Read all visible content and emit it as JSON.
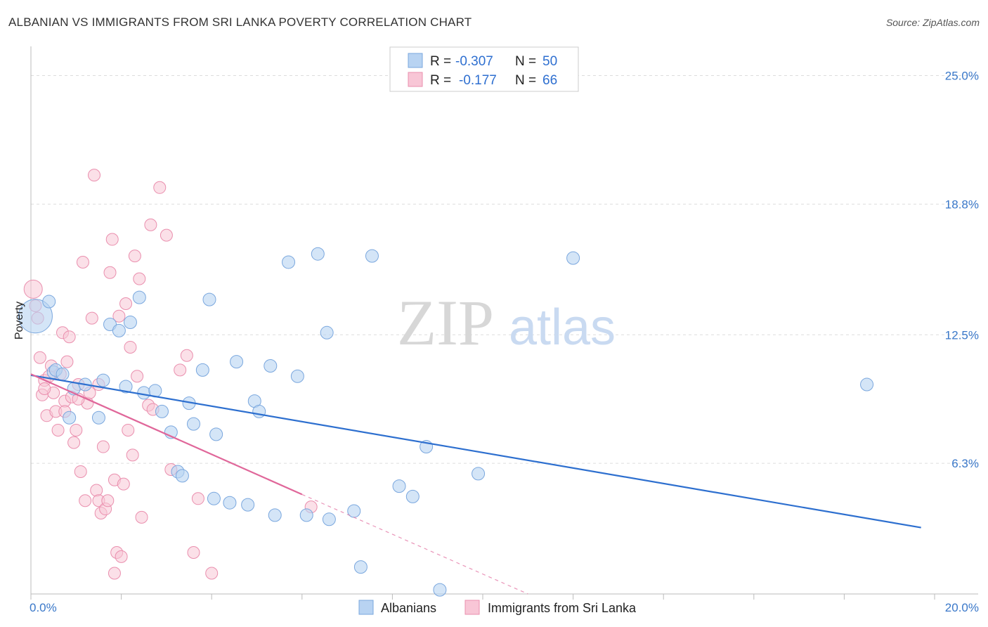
{
  "title": "ALBANIAN VS IMMIGRANTS FROM SRI LANKA POVERTY CORRELATION CHART",
  "source": "Source: ZipAtlas.com",
  "watermark": {
    "zip": "ZIP",
    "atlas": "atlas"
  },
  "colors": {
    "blue_fill": "#b8d3f2",
    "blue_stroke": "#7aa7de",
    "blue_line": "#2d6fcf",
    "pink_fill": "#f8c6d6",
    "pink_stroke": "#ea8fae",
    "pink_line": "#e0679a",
    "axis_label": "#3a78c9",
    "grid": "#dddddd"
  },
  "legend_top": {
    "rows": [
      {
        "r_label": "R =",
        "r_value": "-0.307",
        "n_label": "N =",
        "n_value": "50"
      },
      {
        "r_label": "R =",
        "r_value": "-0.177",
        "n_label": "N =",
        "n_value": "66"
      }
    ]
  },
  "chart_data": {
    "type": "scatter",
    "xlabel": "",
    "ylabel": "Poverty",
    "xlim": [
      0,
      20
    ],
    "ylim": [
      0,
      26
    ],
    "x_tick_labels": [
      "0.0%",
      "20.0%"
    ],
    "y_ticks": [
      6.3,
      12.5,
      18.8,
      25.0
    ],
    "y_tick_labels": [
      "6.3%",
      "12.5%",
      "18.8%",
      "25.0%"
    ],
    "grid": "horizontal dashed",
    "legend_placement": "top-center",
    "series": [
      {
        "name": "Albanians",
        "color": "#b8d3f2",
        "trend": {
          "x": [
            0,
            19.7
          ],
          "y": [
            10.55,
            3.2
          ]
        },
        "points": [
          [
            0.1,
            13.4
          ],
          [
            0.4,
            14.1
          ],
          [
            0.5,
            10.7
          ],
          [
            0.55,
            10.8
          ],
          [
            0.7,
            10.6
          ],
          [
            0.85,
            8.5
          ],
          [
            0.95,
            9.9
          ],
          [
            1.2,
            10.1
          ],
          [
            1.5,
            8.5
          ],
          [
            1.6,
            10.3
          ],
          [
            1.75,
            13.0
          ],
          [
            1.95,
            12.7
          ],
          [
            2.1,
            10.0
          ],
          [
            2.2,
            13.1
          ],
          [
            2.4,
            14.3
          ],
          [
            2.5,
            9.7
          ],
          [
            2.75,
            9.8
          ],
          [
            2.9,
            8.8
          ],
          [
            3.1,
            7.8
          ],
          [
            3.25,
            5.9
          ],
          [
            3.35,
            5.7
          ],
          [
            3.5,
            9.2
          ],
          [
            3.6,
            8.2
          ],
          [
            3.8,
            10.8
          ],
          [
            3.95,
            14.2
          ],
          [
            4.05,
            4.6
          ],
          [
            4.1,
            7.7
          ],
          [
            4.4,
            4.4
          ],
          [
            4.55,
            11.2
          ],
          [
            4.8,
            4.3
          ],
          [
            4.95,
            9.3
          ],
          [
            5.05,
            8.8
          ],
          [
            5.3,
            11.0
          ],
          [
            5.4,
            3.8
          ],
          [
            5.7,
            16.0
          ],
          [
            5.9,
            10.5
          ],
          [
            6.1,
            3.8
          ],
          [
            6.35,
            16.4
          ],
          [
            6.55,
            12.6
          ],
          [
            6.6,
            3.6
          ],
          [
            7.15,
            4.0
          ],
          [
            7.3,
            1.3
          ],
          [
            7.55,
            16.3
          ],
          [
            8.15,
            5.2
          ],
          [
            8.45,
            4.7
          ],
          [
            8.75,
            7.1
          ],
          [
            9.05,
            0.2
          ],
          [
            9.9,
            5.8
          ],
          [
            18.5,
            10.1
          ],
          [
            12.0,
            16.2
          ]
        ]
      },
      {
        "name": "Immigrants from Sri Lanka",
        "color": "#f8c6d6",
        "trend": {
          "x": [
            0,
            6.0
          ],
          "y": [
            10.6,
            4.8
          ]
        },
        "trend_dashed": {
          "x": [
            6.0,
            11.0
          ],
          "y": [
            4.8,
            0.0
          ]
        },
        "points": [
          [
            0.05,
            14.7
          ],
          [
            0.1,
            13.9
          ],
          [
            0.15,
            13.3
          ],
          [
            0.2,
            11.4
          ],
          [
            0.25,
            9.6
          ],
          [
            0.3,
            10.3
          ],
          [
            0.35,
            8.6
          ],
          [
            0.4,
            10.5
          ],
          [
            0.45,
            11.0
          ],
          [
            0.5,
            9.7
          ],
          [
            0.55,
            8.8
          ],
          [
            0.6,
            7.9
          ],
          [
            0.65,
            10.6
          ],
          [
            0.7,
            12.6
          ],
          [
            0.75,
            9.3
          ],
          [
            0.8,
            11.2
          ],
          [
            0.85,
            12.4
          ],
          [
            0.9,
            9.5
          ],
          [
            0.95,
            7.3
          ],
          [
            1.0,
            7.9
          ],
          [
            1.05,
            10.1
          ],
          [
            1.1,
            5.9
          ],
          [
            1.15,
            16.0
          ],
          [
            1.2,
            4.5
          ],
          [
            1.25,
            9.2
          ],
          [
            1.3,
            9.7
          ],
          [
            1.35,
            13.3
          ],
          [
            1.4,
            20.2
          ],
          [
            1.45,
            5.0
          ],
          [
            1.5,
            4.5
          ],
          [
            1.55,
            3.9
          ],
          [
            1.6,
            7.1
          ],
          [
            1.65,
            4.1
          ],
          [
            1.7,
            4.5
          ],
          [
            1.75,
            15.5
          ],
          [
            1.8,
            17.1
          ],
          [
            1.85,
            5.5
          ],
          [
            1.9,
            2.0
          ],
          [
            1.95,
            13.4
          ],
          [
            2.0,
            1.8
          ],
          [
            2.05,
            5.3
          ],
          [
            2.1,
            14.0
          ],
          [
            2.15,
            7.9
          ],
          [
            2.2,
            11.9
          ],
          [
            2.25,
            6.7
          ],
          [
            2.3,
            16.3
          ],
          [
            2.35,
            10.5
          ],
          [
            2.4,
            15.2
          ],
          [
            2.45,
            3.7
          ],
          [
            2.6,
            9.1
          ],
          [
            2.65,
            17.8
          ],
          [
            2.7,
            8.9
          ],
          [
            2.85,
            19.6
          ],
          [
            3.0,
            17.3
          ],
          [
            3.1,
            6.0
          ],
          [
            3.3,
            10.8
          ],
          [
            3.45,
            11.5
          ],
          [
            3.6,
            2.0
          ],
          [
            3.7,
            4.6
          ],
          [
            4.0,
            1.0
          ],
          [
            1.85,
            1.0
          ],
          [
            0.75,
            8.8
          ],
          [
            1.05,
            9.4
          ],
          [
            6.2,
            4.2
          ],
          [
            0.3,
            9.9
          ],
          [
            1.5,
            10.1
          ]
        ]
      }
    ]
  }
}
